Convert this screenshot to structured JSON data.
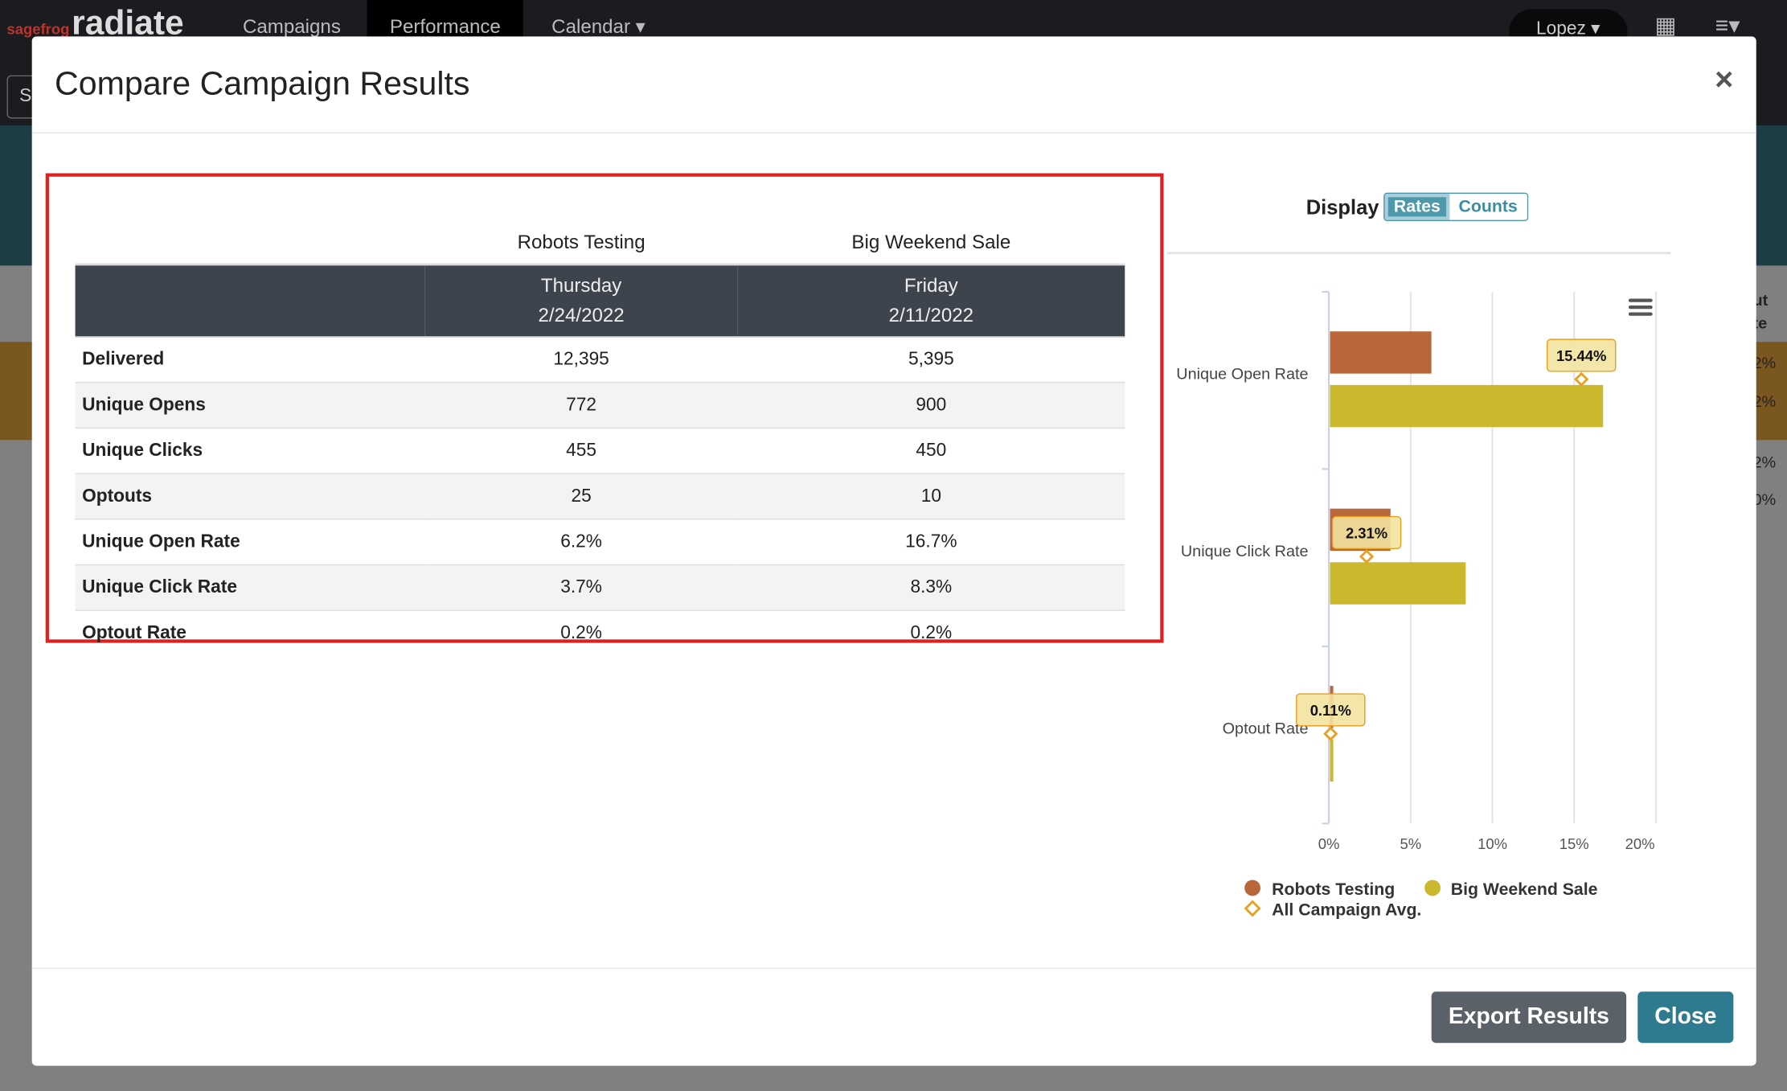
{
  "nav": {
    "brand_small": "sagefrog",
    "brand": "radiate",
    "items": [
      "Campaigns",
      "Performance",
      "Calendar ▾"
    ],
    "user": "Lopez ▾",
    "search_stub": "S"
  },
  "background_fragments": [
    "ut",
    "te",
    "2%",
    "2%",
    "2%",
    "0%"
  ],
  "modal": {
    "title": "Compare Campaign Results",
    "close_icon": "×"
  },
  "table": {
    "campaigns": [
      {
        "name": "Robots Testing",
        "day": "Thursday",
        "date": "2/24/2022"
      },
      {
        "name": "Big Weekend Sale",
        "day": "Friday",
        "date": "2/11/2022"
      }
    ],
    "rows": [
      {
        "label": "Delivered",
        "values": [
          "12,395",
          "5,395"
        ]
      },
      {
        "label": "Unique Opens",
        "values": [
          "772",
          "900"
        ]
      },
      {
        "label": "Unique Clicks",
        "values": [
          "455",
          "450"
        ]
      },
      {
        "label": "Optouts",
        "values": [
          "25",
          "10"
        ]
      },
      {
        "label": "Unique Open Rate",
        "values": [
          "6.2%",
          "16.7%"
        ]
      },
      {
        "label": "Unique Click Rate",
        "values": [
          "3.7%",
          "8.3%"
        ]
      },
      {
        "label": "Optout Rate",
        "values": [
          "0.2%",
          "0.2%"
        ]
      }
    ]
  },
  "display": {
    "label": "Display",
    "options": [
      "Rates",
      "Counts"
    ],
    "selected": "Rates"
  },
  "chart_data": {
    "type": "bar",
    "orientation": "horizontal",
    "categories": [
      "Unique Open Rate",
      "Unique Click Rate",
      "Optout Rate"
    ],
    "series": [
      {
        "name": "Robots Testing",
        "values": [
          6.2,
          3.7,
          0.2
        ],
        "color": "#b9663a"
      },
      {
        "name": "Big Weekend Sale",
        "values": [
          16.7,
          8.3,
          0.2
        ],
        "color": "#cbb82c"
      }
    ],
    "average": {
      "name": "All Campaign Avg.",
      "values": [
        15.44,
        2.31,
        0.11
      ],
      "labels": [
        "15.44%",
        "2.31%",
        "0.11%"
      ],
      "color": "#e8a020"
    },
    "xlim": [
      0,
      20
    ],
    "xticks": [
      "0%",
      "5%",
      "10%",
      "15%",
      "20%"
    ],
    "grid": true,
    "legend": "bottom"
  },
  "footer": {
    "export": "Export Results",
    "close": "Close"
  }
}
